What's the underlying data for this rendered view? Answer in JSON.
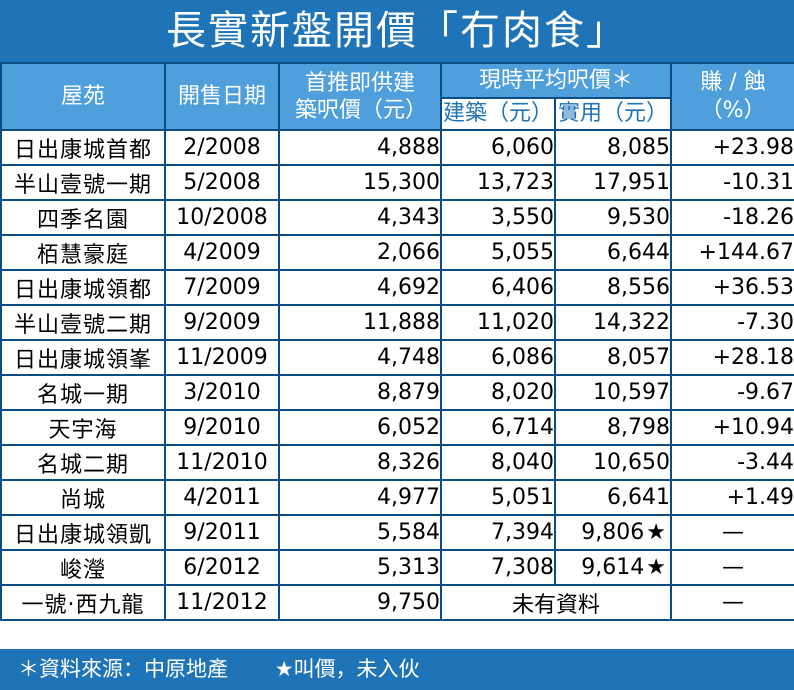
{
  "title": "長實新盤開價「冇肉食」",
  "colors": {
    "title_bg": "#1f74b8",
    "header_bg": "#4f9fdc",
    "border": "#0b4d86"
  },
  "headers": {
    "estate": "屋苑",
    "date": "開售日期",
    "first_price": "首推即供建築呎價（元）",
    "current_group": "現時平均呎價＊",
    "current_gross": "建築（元）",
    "current_net": "實用（元）",
    "gain_loss": "賺 / 蝕（%）"
  },
  "rows": [
    {
      "estate": "日出康城首都",
      "date": "2/2008",
      "first": "4,888",
      "gross": "6,060",
      "net": "8,085",
      "pct": "+23.98"
    },
    {
      "estate": "半山壹號一期",
      "date": "5/2008",
      "first": "15,300",
      "gross": "13,723",
      "net": "17,951",
      "pct": "-10.31"
    },
    {
      "estate": "四季名園",
      "date": "10/2008",
      "first": "4,343",
      "gross": "3,550",
      "net": "9,530",
      "pct": "-18.26"
    },
    {
      "estate": "栢慧豪庭",
      "date": "4/2009",
      "first": "2,066",
      "gross": "5,055",
      "net": "6,644",
      "pct": "+144.67"
    },
    {
      "estate": "日出康城領都",
      "date": "7/2009",
      "first": "4,692",
      "gross": "6,406",
      "net": "8,556",
      "pct": "+36.53"
    },
    {
      "estate": "半山壹號二期",
      "date": "9/2009",
      "first": "11,888",
      "gross": "11,020",
      "net": "14,322",
      "pct": "-7.30"
    },
    {
      "estate": "日出康城領峯",
      "date": "11/2009",
      "first": "4,748",
      "gross": "6,086",
      "net": "8,057",
      "pct": "+28.18"
    },
    {
      "estate": "名城一期",
      "date": "3/2010",
      "first": "8,879",
      "gross": "8,020",
      "net": "10,597",
      "pct": "-9.67"
    },
    {
      "estate": "天宇海",
      "date": "9/2010",
      "first": "6,052",
      "gross": "6,714",
      "net": "8,798",
      "pct": "+10.94"
    },
    {
      "estate": "名城二期",
      "date": "11/2010",
      "first": "8,326",
      "gross": "8,040",
      "net": "10,650",
      "pct": "-3.44"
    },
    {
      "estate": "尚城",
      "date": "4/2011",
      "first": "4,977",
      "gross": "5,051",
      "net": "6,641",
      "pct": "+1.49"
    },
    {
      "estate": "日出康城領凱",
      "date": "9/2011",
      "first": "5,584",
      "gross": "7,394",
      "net": "9,806",
      "star": "★",
      "pct": "—"
    },
    {
      "estate": "峻瀅",
      "date": "6/2012",
      "first": "5,313",
      "gross": "7,308",
      "net": "9,614",
      "star": "★",
      "pct": "—"
    }
  ],
  "last_row": {
    "estate": "一號‧西九龍",
    "date": "11/2012",
    "first": "9,750",
    "merged": "未有資料",
    "pct": "—"
  },
  "footer": {
    "source": "＊資料來源：中原地產",
    "note": "★叫價，未入伙"
  }
}
